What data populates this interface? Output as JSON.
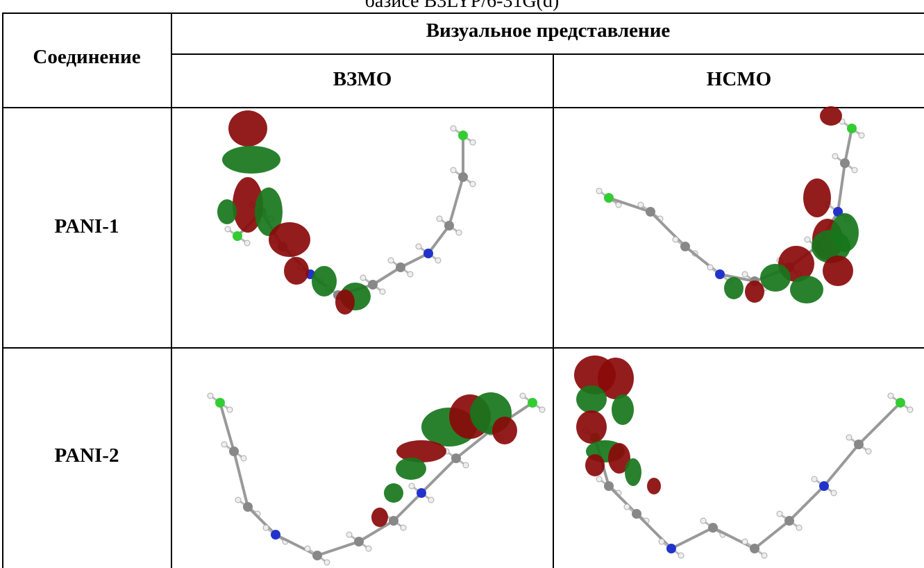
{
  "caption": "базисе B3LYP/6-31G(d)",
  "header": {
    "compound": "Соединение",
    "visual": "Визуальное представление",
    "homo": "ВЗМО",
    "lumo": "НСМО"
  },
  "rows": [
    {
      "name": "PANI-1"
    },
    {
      "name": "PANI-2"
    }
  ]
}
